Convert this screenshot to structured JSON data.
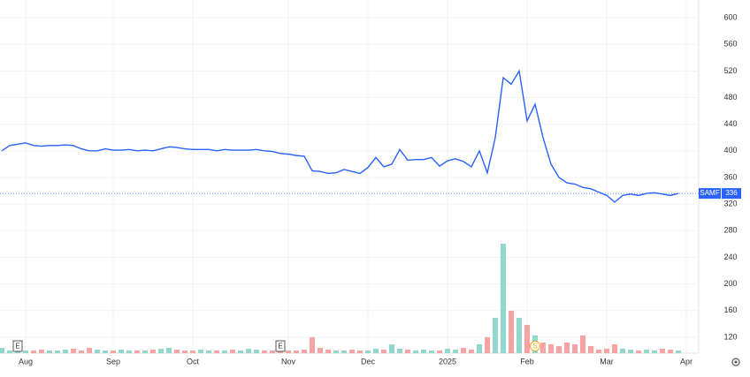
{
  "chart_data": {
    "type": "line",
    "categories": [
      null,
      null,
      null,
      "Aug",
      null,
      null,
      null,
      null,
      null,
      null,
      null,
      null,
      null,
      null,
      "Sep",
      null,
      null,
      null,
      null,
      null,
      null,
      null,
      null,
      null,
      "Oct",
      null,
      null,
      null,
      null,
      null,
      null,
      null,
      null,
      null,
      null,
      null,
      "Nov",
      null,
      null,
      null,
      null,
      null,
      null,
      null,
      null,
      null,
      "Dec",
      null,
      null,
      null,
      null,
      null,
      null,
      null,
      null,
      null,
      "2025",
      null,
      null,
      null,
      null,
      null,
      null,
      null,
      null,
      null,
      "Feb",
      null,
      null,
      null,
      null,
      null,
      null,
      null,
      null,
      null,
      "Mar",
      null,
      null,
      null,
      null,
      null,
      null,
      null,
      null,
      null,
      "Apr"
    ],
    "series": [
      {
        "name": "SAMF",
        "color": "#2962ff",
        "values": [
          400,
          408,
          410,
          412,
          408,
          407,
          408,
          408,
          409,
          408,
          403,
          400,
          400,
          403,
          401,
          401,
          402,
          400,
          401,
          400,
          403,
          406,
          405,
          403,
          402,
          402,
          402,
          400,
          402,
          401,
          401,
          401,
          402,
          400,
          399,
          396,
          395,
          393,
          392,
          370,
          369,
          366,
          367,
          372,
          369,
          366,
          375,
          390,
          376,
          380,
          402,
          386,
          387,
          387,
          390,
          377,
          385,
          388,
          384,
          376,
          400,
          367,
          420,
          510,
          500,
          520,
          445,
          470,
          420,
          380,
          360,
          352,
          350,
          345,
          343,
          338,
          333,
          323,
          333,
          335,
          333,
          336,
          337,
          335,
          333,
          336,
          null
        ]
      }
    ],
    "volume": {
      "up_color": "#92d6cc",
      "down_color": "#f5a3a3",
      "lim": [
        0,
        130
      ],
      "values": [
        6,
        3,
        4,
        3,
        3,
        4,
        3,
        3,
        4,
        5,
        3,
        6,
        4,
        3,
        3,
        4,
        3,
        3,
        3,
        4,
        5,
        6,
        4,
        3,
        3,
        4,
        3,
        3,
        3,
        4,
        3,
        5,
        4,
        3,
        3,
        4,
        3,
        3,
        4,
        18,
        6,
        4,
        3,
        3,
        4,
        3,
        3,
        5,
        4,
        10,
        5,
        4,
        3,
        4,
        3,
        3,
        5,
        4,
        6,
        4,
        10,
        18,
        40,
        124,
        48,
        40,
        32,
        20,
        12,
        10,
        8,
        12,
        10,
        20,
        8,
        4,
        5,
        10,
        5,
        4,
        3,
        4,
        3,
        5,
        4,
        3,
        null
      ]
    },
    "annotations": [
      {
        "text": "E",
        "index": 2
      },
      {
        "text": "E",
        "index": 35
      },
      {
        "text": "S",
        "index": 67
      }
    ],
    "ylim": [
      96,
      624
    ],
    "yticks": [
      600,
      560,
      520,
      480,
      440,
      400,
      360,
      320,
      280,
      240,
      200,
      160,
      120
    ],
    "grid": true
  }
}
